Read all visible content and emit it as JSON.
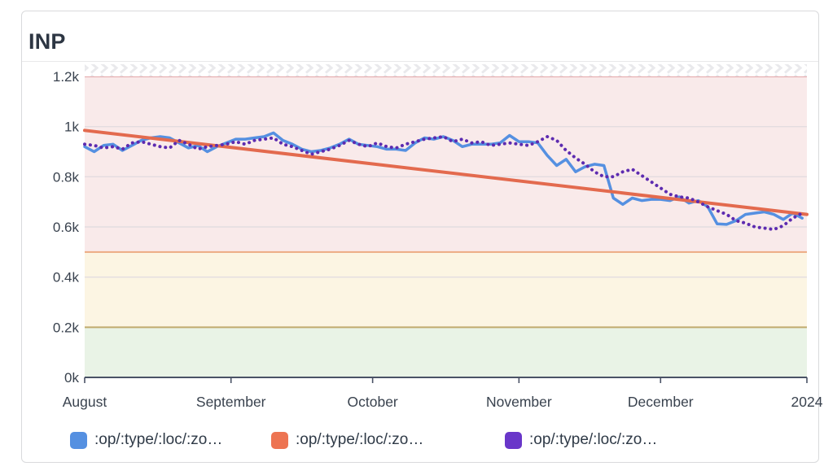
{
  "card": {
    "title": "INP"
  },
  "legend": {
    "items": [
      {
        "label": ":op/:type/:loc/:zo…",
        "color": "#5590e1"
      },
      {
        "label": ":op/:type/:loc/:zo…",
        "color": "#ed7452"
      },
      {
        "label": ":op/:type/:loc/:zo…",
        "color": "#6936c9"
      }
    ]
  },
  "chart_data": {
    "type": "line",
    "title": "INP",
    "x_axis": {
      "tick_labels": [
        "August",
        "September",
        "October",
        "November",
        "December",
        "2024"
      ],
      "tick_days": [
        0,
        31,
        61,
        92,
        122,
        153
      ],
      "total_days": 153
    },
    "y_axis": {
      "tick_labels": [
        "0k",
        "0.2k",
        "0.4k",
        "0.6k",
        "0.8k",
        "1k",
        "1.2k"
      ],
      "tick_values": [
        0,
        200,
        400,
        600,
        800,
        1000,
        1200
      ],
      "gridline_values": [
        400,
        600,
        800,
        1000
      ],
      "range": [
        0,
        1200
      ],
      "overflow_hatch_above_max": true
    },
    "threshold_bands": [
      {
        "from": 0,
        "to": 200,
        "fill": "#e9f3e6",
        "edge_color": "#c0ab6e"
      },
      {
        "from": 200,
        "to": 500,
        "fill": "#fcf5e3",
        "edge_color": "#edaa83"
      },
      {
        "from": 500,
        "to": 1200,
        "fill": "#f9eaea",
        "edge_color": "#e4a6a9"
      }
    ],
    "axis_color": "#4a5266",
    "label_color": "#39424e",
    "series": [
      {
        "name": ":op/:type/:loc/:zo…",
        "line_style": "solid",
        "color": "#5590e1",
        "day_start": 0,
        "day_step": 2,
        "values": [
          920,
          900,
          925,
          930,
          905,
          925,
          945,
          955,
          960,
          955,
          935,
          915,
          925,
          900,
          920,
          935,
          950,
          950,
          955,
          960,
          975,
          945,
          930,
          910,
          900,
          905,
          915,
          930,
          950,
          930,
          925,
          920,
          910,
          910,
          905,
          935,
          955,
          950,
          960,
          945,
          920,
          930,
          930,
          930,
          935,
          965,
          940,
          940,
          935,
          885,
          845,
          870,
          820,
          840,
          850,
          845,
          715,
          690,
          715,
          705,
          710,
          710,
          705,
          720,
          695,
          705,
          680,
          612,
          610,
          625,
          650,
          655,
          660,
          650,
          630,
          655,
          635
        ]
      },
      {
        "name": ":op/:type/:loc/:zo…",
        "line_style": "solid",
        "color": "#e36a4e",
        "days": [
          0,
          153
        ],
        "values": [
          985,
          650
        ]
      },
      {
        "name": ":op/:type/:loc/:zo…",
        "line_style": "dotted",
        "color": "#5d2bb0",
        "day_start": 0,
        "day_step": 2,
        "values": [
          930,
          925,
          915,
          920,
          910,
          935,
          940,
          930,
          920,
          915,
          945,
          930,
          910,
          920,
          925,
          930,
          940,
          930,
          945,
          950,
          955,
          930,
          920,
          905,
          890,
          900,
          910,
          925,
          945,
          930,
          920,
          935,
          920,
          915,
          930,
          940,
          950,
          955,
          960,
          940,
          950,
          935,
          940,
          925,
          930,
          935,
          930,
          925,
          940,
          960,
          945,
          905,
          875,
          850,
          820,
          800,
          800,
          820,
          830,
          805,
          780,
          755,
          730,
          720,
          715,
          700,
          680,
          665,
          650,
          625,
          615,
          600,
          595,
          590,
          605,
          635,
          655
        ]
      }
    ]
  }
}
